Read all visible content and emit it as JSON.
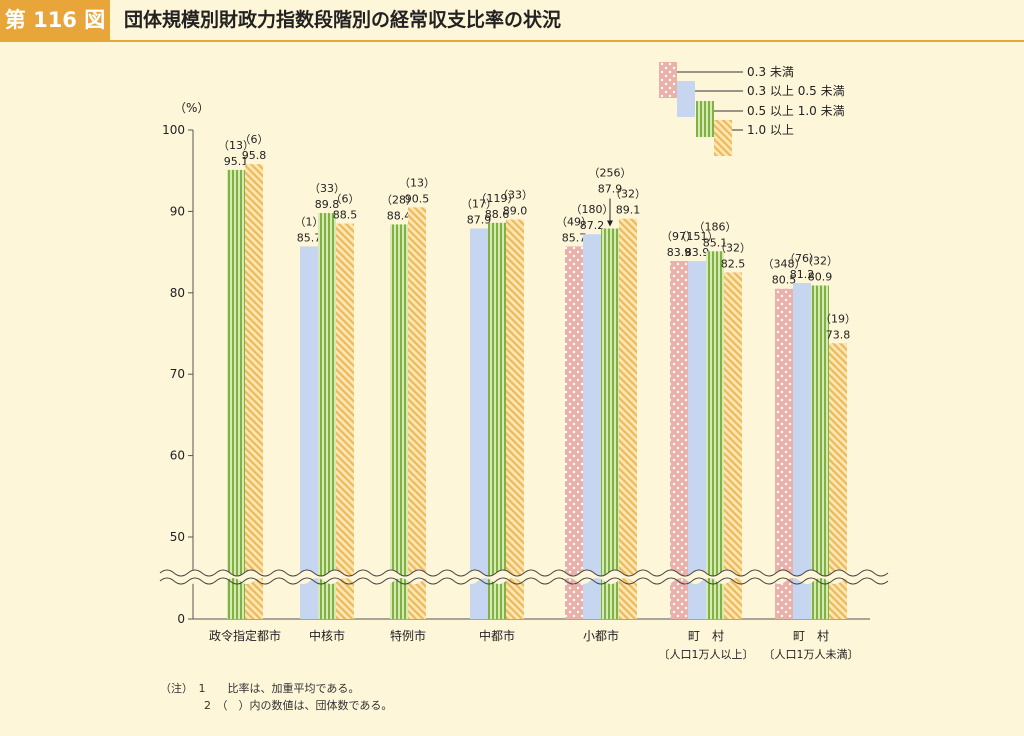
{
  "header": {
    "figure_label": "第 116 図",
    "title": "団体規模別財政力指数段階別の経常収支比率の状況"
  },
  "notes": [
    "（注）　1　　比率は、加重平均である。",
    "　　　　2　（　）内の数値は、団体数である。"
  ],
  "colors": {
    "series0": "#f1b9b4",
    "series1": "#c5d4ef",
    "series2": "#8fbf4f",
    "series3": "#f2c36a",
    "accent": "#e8a53a"
  },
  "chart_data": {
    "type": "bar",
    "ylabel": "（%）",
    "yticks": [
      "100",
      "90",
      "80",
      "70",
      "60",
      "50",
      "0"
    ],
    "ylim": [
      0,
      100
    ],
    "axis_break": true,
    "legend_position": "top-right",
    "categories": [
      "政令指定都市",
      "中核市",
      "特例市",
      "中都市",
      "小都市",
      "町　村",
      "町　村"
    ],
    "category_sublabels": [
      "",
      "",
      "",
      "",
      "",
      "〔人口1万人以上〕",
      "〔人口1万人未満〕"
    ],
    "series": [
      {
        "name": "0.3 未満",
        "values": [
          null,
          null,
          null,
          null,
          85.7,
          83.9,
          80.5
        ],
        "counts": [
          null,
          null,
          null,
          null,
          "（49）",
          "（97）",
          "（348）"
        ]
      },
      {
        "name": "0.3 以上 0.5 未満",
        "values": [
          null,
          85.7,
          null,
          87.9,
          87.2,
          83.9,
          81.2
        ],
        "counts": [
          null,
          "（1）",
          null,
          "（17）",
          "（180）",
          "（151）",
          "（76）"
        ]
      },
      {
        "name": "0.5 以上 1.0 未満",
        "values": [
          95.1,
          89.8,
          88.4,
          88.6,
          87.9,
          85.1,
          80.9
        ],
        "counts": [
          "（13）",
          "（33）",
          "（28）",
          "（119）",
          "（256）",
          "（186）",
          "（32）"
        ]
      },
      {
        "name": "1.0 以上",
        "values": [
          95.8,
          88.5,
          90.5,
          89.0,
          89.1,
          82.5,
          73.8
        ],
        "counts": [
          "（6）",
          "（6）",
          "（13）",
          "（33）",
          "（32）",
          "（32）",
          "（19）"
        ]
      }
    ]
  }
}
